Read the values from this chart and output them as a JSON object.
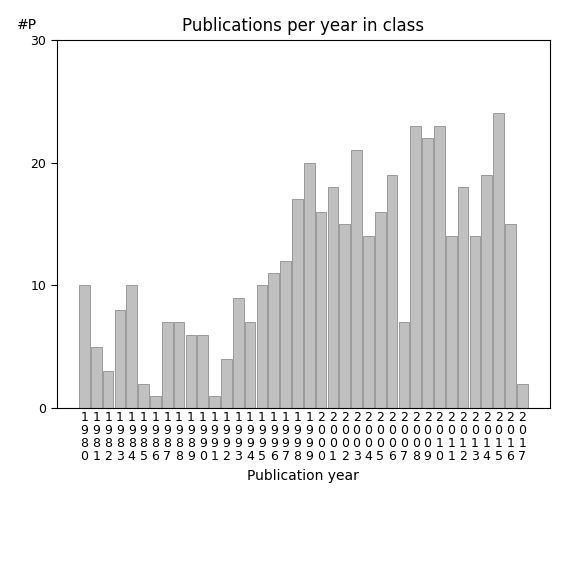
{
  "title": "Publications per year in class",
  "xlabel": "Publication year",
  "ylabel": "#P",
  "years": [
    1980,
    1981,
    1982,
    1983,
    1984,
    1985,
    1986,
    1987,
    1988,
    1989,
    1990,
    1991,
    1992,
    1993,
    1994,
    1995,
    1996,
    1997,
    1998,
    1999,
    2000,
    2001,
    2002,
    2003,
    2004,
    2005,
    2006,
    2007,
    2008,
    2009,
    2010,
    2011,
    2012,
    2013,
    2014,
    2015,
    2016,
    2017
  ],
  "values": [
    10,
    5,
    3,
    8,
    10,
    2,
    1,
    7,
    7,
    6,
    6,
    1,
    4,
    9,
    7,
    10,
    11,
    12,
    17,
    20,
    16,
    18,
    15,
    21,
    14,
    16,
    19,
    7,
    23,
    22,
    23,
    14,
    18,
    14,
    19,
    24,
    15,
    2
  ],
  "bar_color": "#c0c0c0",
  "bar_edgecolor": "#808080",
  "ylim": [
    0,
    30
  ],
  "yticks": [
    0,
    10,
    20,
    30
  ],
  "background_color": "#ffffff",
  "title_fontsize": 12,
  "axis_label_fontsize": 10,
  "tick_fontsize": 9
}
